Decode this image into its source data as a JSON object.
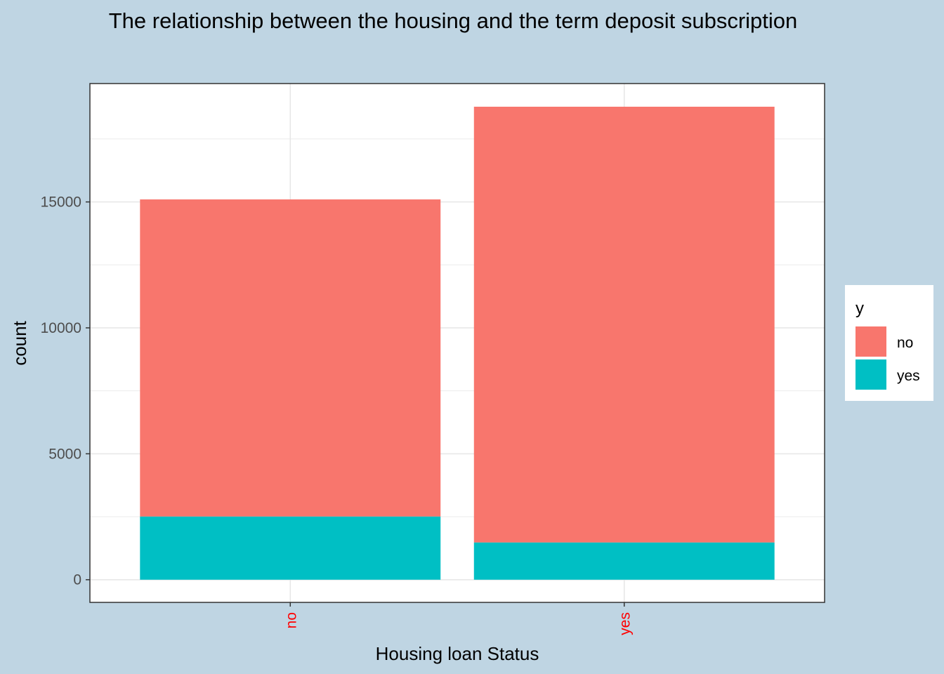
{
  "chart_data": {
    "type": "bar",
    "stacked": true,
    "title": "The relationship between the housing and the term deposit subscription",
    "xlabel": "Housing loan Status",
    "ylabel": "count",
    "categories": [
      "no",
      "yes"
    ],
    "series": [
      {
        "name": "no",
        "values": [
          12590,
          17300
        ],
        "color": "#f8766d"
      },
      {
        "name": "yes",
        "values": [
          2510,
          1480
        ],
        "color": "#00bfc4"
      }
    ],
    "yticks": [
      0,
      5000,
      10000,
      15000
    ],
    "ylim": [
      -900,
      19700
    ],
    "legend": {
      "title": "y",
      "position": "right"
    },
    "grid": true,
    "background": "#bfd5e3",
    "panel_background": "#ffffff",
    "x_tick_color": "#ff0000"
  }
}
